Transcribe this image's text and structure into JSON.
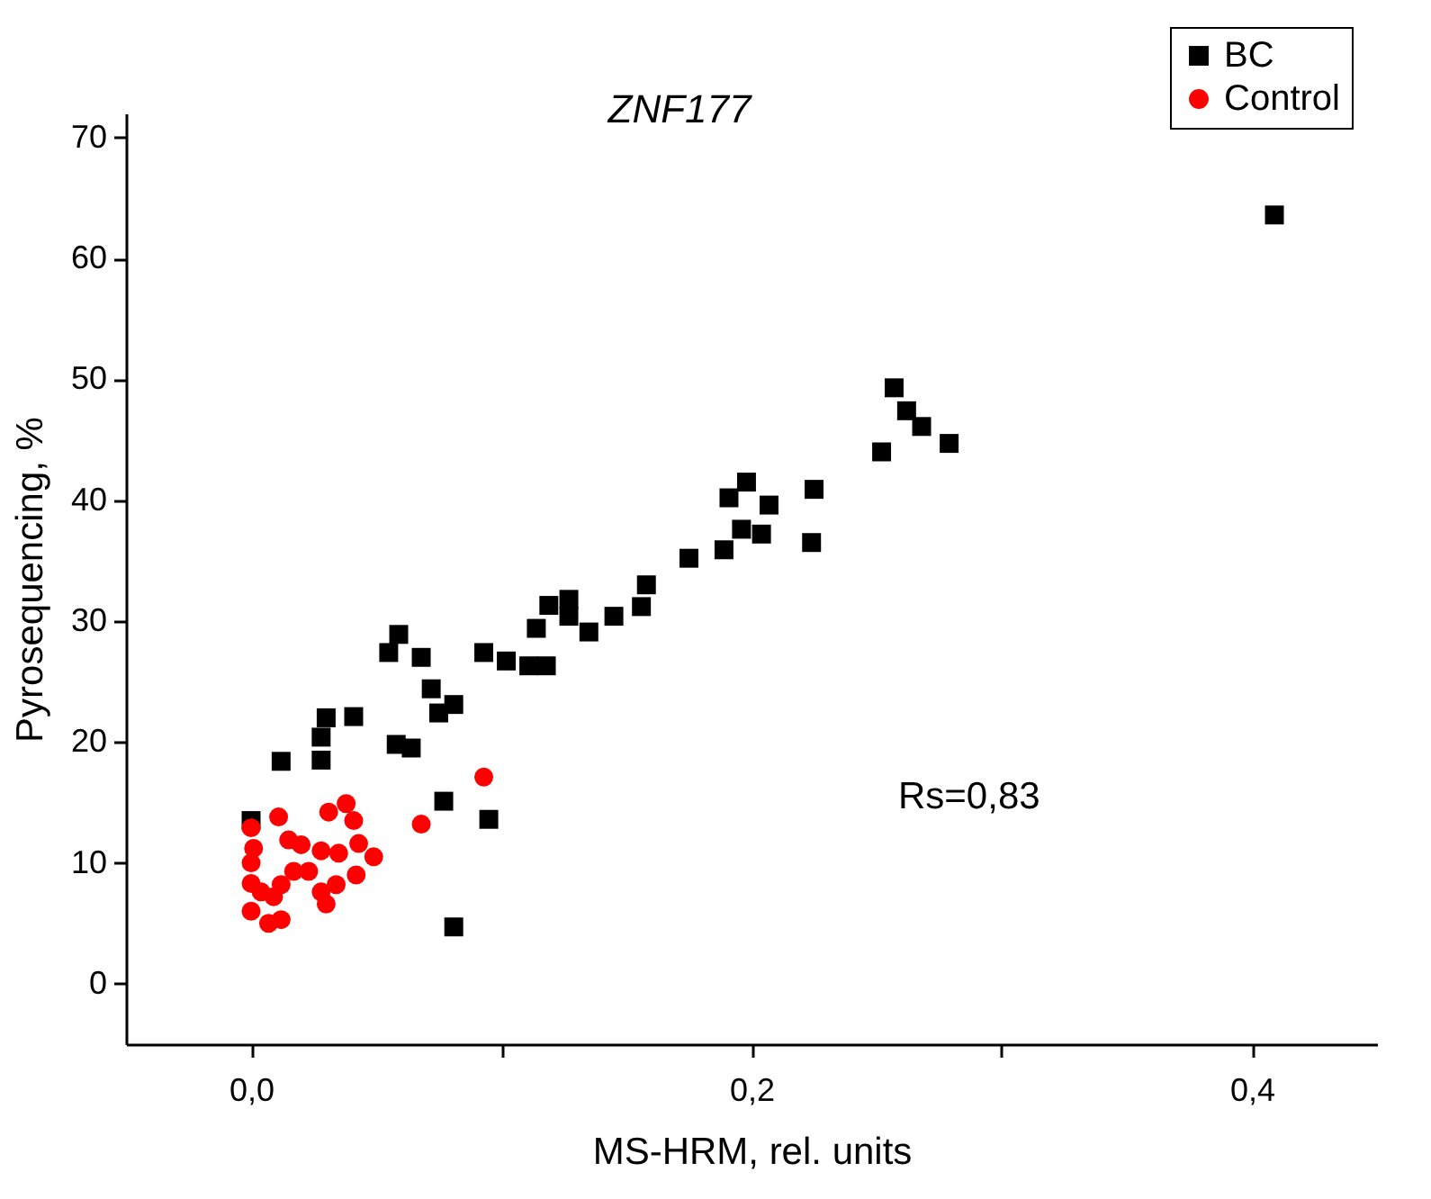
{
  "chart_data": {
    "type": "scatter",
    "title": "ZNF177",
    "xlabel": "MS-HRM, rel. units",
    "ylabel": "Pyrosequencing, %",
    "annotations": [
      "Rs=0,83"
    ],
    "xlim": [
      -0.05,
      0.45
    ],
    "ylim": [
      -5,
      72
    ],
    "xticks": [
      {
        "value": 0,
        "label": "0,0"
      },
      {
        "value": 0.1,
        "label": null
      },
      {
        "value": 0.2,
        "label": "0,2"
      },
      {
        "value": 0.3,
        "label": null
      },
      {
        "value": 0.4,
        "label": "0,4"
      }
    ],
    "yticks": [
      0,
      10,
      20,
      30,
      40,
      50,
      60,
      70
    ],
    "grid": false,
    "legend": "top right",
    "series": [
      {
        "name": "BC",
        "color": "#000000",
        "marker": "square",
        "x": [
          0.409,
          0.257,
          0.262,
          0.268,
          0.279,
          0.252,
          0.225,
          0.224,
          0.198,
          0.191,
          0.207,
          0.196,
          0.204,
          0.189,
          0.175,
          0.158,
          0.156,
          0.145,
          0.135,
          0.127,
          0.119,
          0.127,
          0.114,
          0.102,
          0.093,
          0.111,
          0.118,
          0.059,
          0.055,
          0.068,
          0.072,
          0.081,
          0.075,
          0.03,
          0.041,
          0.028,
          0.028,
          0.012,
          0.058,
          0.064,
          0.077,
          0.095,
          0.081,
          0.0
        ],
        "values": [
          63.6,
          49.3,
          47.4,
          46.1,
          44.7,
          44.0,
          40.9,
          36.5,
          41.5,
          40.2,
          39.6,
          37.6,
          37.2,
          35.9,
          35.2,
          33.0,
          31.2,
          30.4,
          29.1,
          31.8,
          31.3,
          30.4,
          29.4,
          26.7,
          27.4,
          26.3,
          26.3,
          28.9,
          27.4,
          27.0,
          24.4,
          23.1,
          22.4,
          22.0,
          22.1,
          20.4,
          18.5,
          18.4,
          19.8,
          19.5,
          15.1,
          13.6,
          4.7,
          13.5
        ]
      },
      {
        "name": "Control",
        "color": "#ff0000",
        "marker": "circle",
        "x": [
          0.093,
          0.068,
          0.011,
          0.031,
          0.038,
          0.041,
          0.0,
          0.001,
          0.015,
          0.02,
          0.0,
          0.0,
          0.0,
          0.007,
          0.012,
          null,
          0.012,
          0.017,
          0.023,
          0.028,
          0.035,
          0.043,
          0.049,
          0.042,
          0.034,
          0.028,
          0.03,
          0.004,
          0.009
        ],
        "values": [
          17.1,
          13.2,
          13.8,
          14.2,
          14.9,
          13.5,
          12.9,
          11.2,
          11.9,
          11.5,
          10.0,
          8.3,
          6.0,
          5.0,
          5.3,
          null,
          8.2,
          9.3,
          9.3,
          11.0,
          10.8,
          11.6,
          10.5,
          9.0,
          8.2,
          7.6,
          6.6,
          7.6,
          7.2
        ]
      }
    ]
  }
}
